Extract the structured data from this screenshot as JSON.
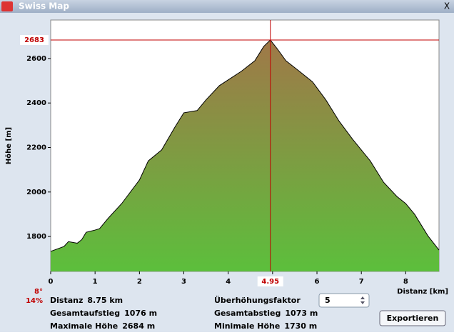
{
  "window": {
    "title": "Swiss Map",
    "close": "X"
  },
  "chart_data": {
    "type": "area",
    "y_label": "Höhe [m]",
    "x_label": "Distanz [km]",
    "x": [
      0,
      0.3,
      0.4,
      0.6,
      0.7,
      0.8,
      1.0,
      1.1,
      1.3,
      1.6,
      2.0,
      2.2,
      2.5,
      2.8,
      3.0,
      3.3,
      3.5,
      3.8,
      4.0,
      4.3,
      4.6,
      4.8,
      4.95,
      5.1,
      5.3,
      5.6,
      5.9,
      6.2,
      6.5,
      6.8,
      7.0,
      7.2,
      7.5,
      7.8,
      8.0,
      8.2,
      8.5,
      8.75
    ],
    "values": [
      1733,
      1755,
      1777,
      1770,
      1786,
      1819,
      1829,
      1835,
      1883,
      1948,
      2054,
      2140,
      2189,
      2292,
      2356,
      2366,
      2414,
      2478,
      2504,
      2543,
      2590,
      2654,
      2683,
      2645,
      2590,
      2543,
      2495,
      2414,
      2318,
      2238,
      2189,
      2140,
      2044,
      1980,
      1948,
      1900,
      1803,
      1739
    ],
    "xlim": [
      0,
      8.75
    ],
    "ylim": [
      1643,
      2773
    ],
    "xticks": [
      0,
      1,
      2,
      3,
      4,
      5,
      6,
      7,
      8
    ],
    "yticks": [
      1800,
      2000,
      2200,
      2400,
      2600
    ],
    "cursor": {
      "x": 4.95,
      "y": 2683
    },
    "cursor_color": "#c00000",
    "fill_top": "#a07848",
    "fill_bottom": "#5cbf3c"
  },
  "slope": {
    "degrees": "8°",
    "percent": "14%"
  },
  "stats_left": [
    {
      "label": "Distanz",
      "value": "8.75 km"
    },
    {
      "label": "Gesamtaufstieg",
      "value": "1076 m"
    },
    {
      "label": "Maximale Höhe",
      "value": "2684 m"
    }
  ],
  "stats_right": [
    {
      "label": "Überhöhungsfaktor",
      "value": "5"
    },
    {
      "label": "Gesamtabstieg",
      "value": "1073 m"
    },
    {
      "label": "Minimale Höhe",
      "value": "1730 m"
    }
  ],
  "button": "Exportieren"
}
